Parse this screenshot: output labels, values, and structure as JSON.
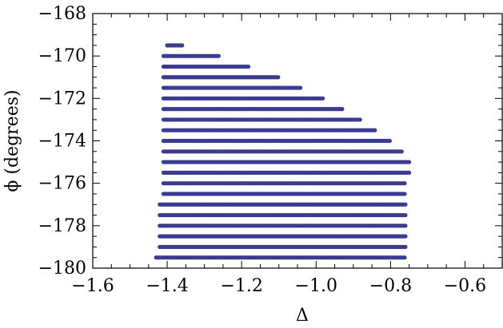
{
  "chart_data": {
    "type": "scatter",
    "xlabel": "Δ",
    "ylabel": "ϕ (degrees)",
    "xlim": [
      -1.6,
      -0.5
    ],
    "ylim": [
      -180,
      -168
    ],
    "xticks": [
      -1.6,
      -1.4,
      -1.2,
      -1.0,
      -0.8,
      -0.6
    ],
    "yticks": [
      -180,
      -178,
      -176,
      -174,
      -172,
      -170,
      -168
    ],
    "xtick_labels": [
      "−1.6",
      "−1.4",
      "−1.2",
      "−1.0",
      "−0.8",
      "−0.6"
    ],
    "ytick_labels": [
      "−180",
      "−178",
      "−176",
      "−174",
      "−172",
      "−170",
      "−168"
    ],
    "grid": false,
    "marker_color": "#3b3b8f",
    "bands": [
      {
        "phi": -169.5,
        "x_min": -1.4,
        "x_max": -1.36
      },
      {
        "phi": -170.0,
        "x_min": -1.41,
        "x_max": -1.26
      },
      {
        "phi": -170.5,
        "x_min": -1.41,
        "x_max": -1.18
      },
      {
        "phi": -171.0,
        "x_min": -1.41,
        "x_max": -1.1
      },
      {
        "phi": -171.5,
        "x_min": -1.41,
        "x_max": -1.04
      },
      {
        "phi": -172.0,
        "x_min": -1.41,
        "x_max": -0.98
      },
      {
        "phi": -172.5,
        "x_min": -1.41,
        "x_max": -0.93
      },
      {
        "phi": -173.0,
        "x_min": -1.41,
        "x_max": -0.88
      },
      {
        "phi": -173.5,
        "x_min": -1.41,
        "x_max": -0.84
      },
      {
        "phi": -174.0,
        "x_min": -1.41,
        "x_max": -0.8
      },
      {
        "phi": -174.5,
        "x_min": -1.41,
        "x_max": -0.77
      },
      {
        "phi": -175.0,
        "x_min": -1.41,
        "x_max": -0.75
      },
      {
        "phi": -175.5,
        "x_min": -1.41,
        "x_max": -0.75
      },
      {
        "phi": -176.0,
        "x_min": -1.41,
        "x_max": -0.76
      },
      {
        "phi": -176.5,
        "x_min": -1.41,
        "x_max": -0.76
      },
      {
        "phi": -177.0,
        "x_min": -1.42,
        "x_max": -0.76
      },
      {
        "phi": -177.5,
        "x_min": -1.42,
        "x_max": -0.76
      },
      {
        "phi": -178.0,
        "x_min": -1.42,
        "x_max": -0.76
      },
      {
        "phi": -178.5,
        "x_min": -1.42,
        "x_max": -0.76
      },
      {
        "phi": -179.0,
        "x_min": -1.42,
        "x_max": -0.76
      },
      {
        "phi": -179.5,
        "x_min": -1.43,
        "x_max": -0.76
      }
    ]
  }
}
